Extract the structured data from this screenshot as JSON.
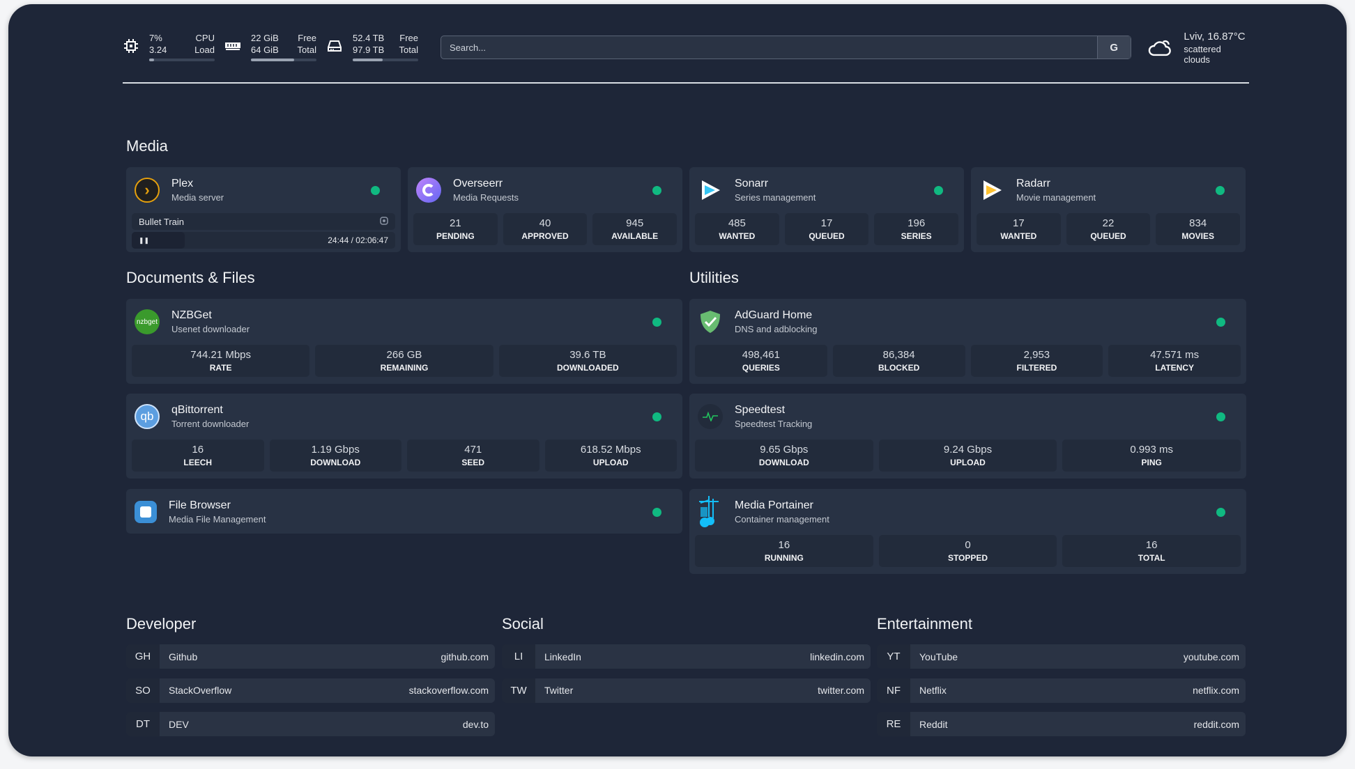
{
  "resources": [
    {
      "icon": "cpu-icon",
      "v1": "7%",
      "v2": "3.24",
      "l1": "CPU",
      "l2": "Load",
      "percent": 7
    },
    {
      "icon": "memory-icon",
      "v1": "22 GiB",
      "v2": "64 GiB",
      "l1": "Free",
      "l2": "Total",
      "percent": 66
    },
    {
      "icon": "disk-icon",
      "v1": "52.4 TB",
      "v2": "97.9 TB",
      "l1": "Free",
      "l2": "Total",
      "percent": 46
    }
  ],
  "search": {
    "placeholder": "Search...",
    "provider": "G"
  },
  "weather": {
    "icon": "cloud-icon",
    "location_temp": "Lviv, 16.87°C",
    "condition": "scattered clouds"
  },
  "colors": {
    "background": "#1e2638",
    "card": "#283244",
    "status_ok": "#10b981"
  },
  "sections": {
    "media": "Media",
    "documents": "Documents & Files",
    "utilities": "Utilities",
    "developer": "Developer",
    "social": "Social",
    "entertainment": "Entertainment"
  },
  "media": [
    {
      "name": "Plex",
      "sub": "Media server",
      "icon": "plex-icon",
      "now_playing": {
        "title": "Bullet Train",
        "time": "24:44 / 02:06:47"
      }
    },
    {
      "name": "Overseerr",
      "sub": "Media Requests",
      "icon": "overseerr-icon",
      "stats": [
        [
          "21",
          "PENDING"
        ],
        [
          "40",
          "APPROVED"
        ],
        [
          "945",
          "AVAILABLE"
        ]
      ]
    },
    {
      "name": "Sonarr",
      "sub": "Series management",
      "icon": "sonarr-icon",
      "stats": [
        [
          "485",
          "WANTED"
        ],
        [
          "17",
          "QUEUED"
        ],
        [
          "196",
          "SERIES"
        ]
      ]
    },
    {
      "name": "Radarr",
      "sub": "Movie management",
      "icon": "radarr-icon",
      "stats": [
        [
          "17",
          "WANTED"
        ],
        [
          "22",
          "QUEUED"
        ],
        [
          "834",
          "MOVIES"
        ]
      ]
    }
  ],
  "documents": [
    {
      "name": "NZBGet",
      "sub": "Usenet downloader",
      "icon": "nzbget-icon",
      "logo_text": "nzbget",
      "stats": [
        [
          "744.21 Mbps",
          "RATE"
        ],
        [
          "266 GB",
          "REMAINING"
        ],
        [
          "39.6 TB",
          "DOWNLOADED"
        ]
      ]
    },
    {
      "name": "qBittorrent",
      "sub": "Torrent downloader",
      "icon": "qbittorrent-icon",
      "logo_text": "qb",
      "stats": [
        [
          "16",
          "LEECH"
        ],
        [
          "1.19 Gbps",
          "DOWNLOAD"
        ],
        [
          "471",
          "SEED"
        ],
        [
          "618.52 Mbps",
          "UPLOAD"
        ]
      ]
    },
    {
      "name": "File Browser",
      "sub": "Media File Management",
      "icon": "file-browser-icon"
    }
  ],
  "utilities": [
    {
      "name": "AdGuard Home",
      "sub": "DNS and adblocking",
      "icon": "adguard-icon",
      "stats": [
        [
          "498,461",
          "QUERIES"
        ],
        [
          "86,384",
          "BLOCKED"
        ],
        [
          "2,953",
          "FILTERED"
        ],
        [
          "47.571 ms",
          "LATENCY"
        ]
      ]
    },
    {
      "name": "Speedtest",
      "sub": "Speedtest Tracking",
      "icon": "speedtest-icon",
      "stats": [
        [
          "9.65 Gbps",
          "DOWNLOAD"
        ],
        [
          "9.24 Gbps",
          "UPLOAD"
        ],
        [
          "0.993 ms",
          "PING"
        ]
      ]
    },
    {
      "name": "Media Portainer",
      "sub": "Container management",
      "icon": "portainer-icon",
      "stats": [
        [
          "16",
          "RUNNING"
        ],
        [
          "0",
          "STOPPED"
        ],
        [
          "16",
          "TOTAL"
        ]
      ]
    }
  ],
  "bookmarks": {
    "developer": [
      [
        "GH",
        "Github",
        "github.com"
      ],
      [
        "SO",
        "StackOverflow",
        "stackoverflow.com"
      ],
      [
        "DT",
        "DEV",
        "dev.to"
      ]
    ],
    "social": [
      [
        "LI",
        "LinkedIn",
        "linkedin.com"
      ],
      [
        "TW",
        "Twitter",
        "twitter.com"
      ]
    ],
    "entertainment": [
      [
        "YT",
        "YouTube",
        "youtube.com"
      ],
      [
        "NF",
        "Netflix",
        "netflix.com"
      ],
      [
        "RE",
        "Reddit",
        "reddit.com"
      ]
    ]
  }
}
